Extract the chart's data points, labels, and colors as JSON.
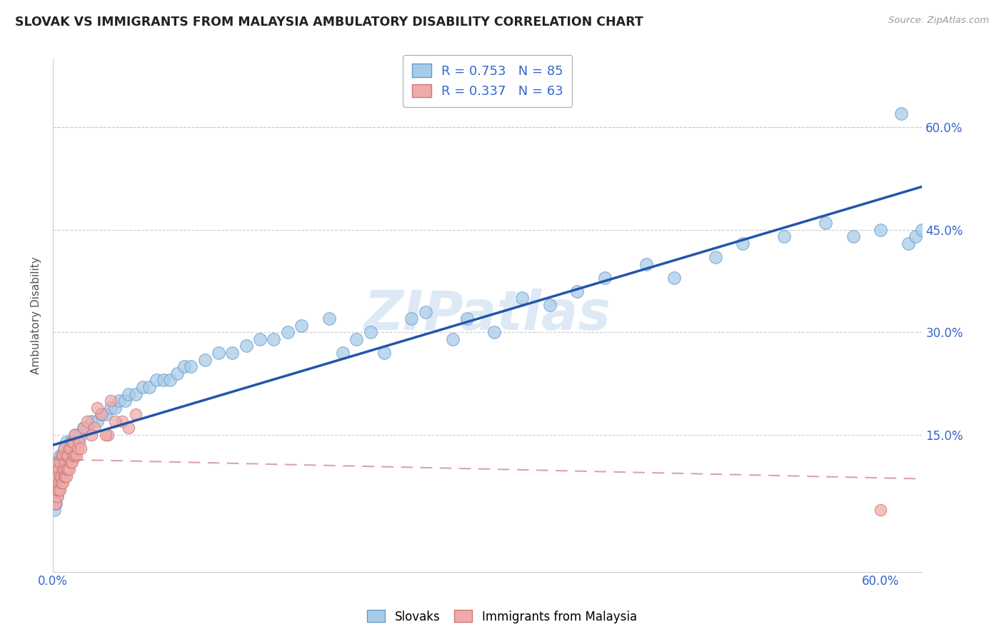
{
  "title": "SLOVAK VS IMMIGRANTS FROM MALAYSIA AMBULATORY DISABILITY CORRELATION CHART",
  "source": "Source: ZipAtlas.com",
  "ylabel": "Ambulatory Disability",
  "xlim": [
    0.0,
    0.63
  ],
  "ylim": [
    -0.05,
    0.7
  ],
  "xtick_vals": [
    0.0,
    0.6
  ],
  "xtick_labels": [
    "0.0%",
    "60.0%"
  ],
  "right_ytick_vals": [
    0.15,
    0.3,
    0.45,
    0.6
  ],
  "right_ytick_labels": [
    "15.0%",
    "30.0%",
    "45.0%",
    "60.0%"
  ],
  "slovak_color": "#A8CCE8",
  "slovak_edge_color": "#6699CC",
  "malaysia_color": "#F0AAAA",
  "malaysia_edge_color": "#CC7777",
  "trendline_slovak_color": "#2255AA",
  "trendline_malaysia_color": "#CC8888",
  "R_slovak": 0.753,
  "N_slovak": 85,
  "R_malaysia": 0.337,
  "N_malaysia": 63,
  "watermark": "ZIPatlas",
  "background_color": "#ffffff",
  "grid_color": "#cccccc",
  "slovak_scatter_x": [
    0.001,
    0.001,
    0.002,
    0.002,
    0.002,
    0.003,
    0.003,
    0.003,
    0.004,
    0.004,
    0.004,
    0.005,
    0.005,
    0.005,
    0.006,
    0.006,
    0.007,
    0.007,
    0.008,
    0.008,
    0.009,
    0.01,
    0.01,
    0.011,
    0.012,
    0.013,
    0.014,
    0.015,
    0.016,
    0.018,
    0.02,
    0.022,
    0.025,
    0.028,
    0.032,
    0.035,
    0.038,
    0.042,
    0.045,
    0.048,
    0.052,
    0.055,
    0.06,
    0.065,
    0.07,
    0.075,
    0.08,
    0.085,
    0.09,
    0.095,
    0.1,
    0.11,
    0.12,
    0.13,
    0.14,
    0.15,
    0.16,
    0.17,
    0.18,
    0.2,
    0.21,
    0.22,
    0.23,
    0.24,
    0.26,
    0.27,
    0.29,
    0.3,
    0.32,
    0.34,
    0.36,
    0.38,
    0.4,
    0.43,
    0.45,
    0.48,
    0.5,
    0.53,
    0.56,
    0.58,
    0.6,
    0.615,
    0.62,
    0.625,
    0.63
  ],
  "slovak_scatter_y": [
    0.04,
    0.06,
    0.05,
    0.07,
    0.08,
    0.06,
    0.09,
    0.1,
    0.07,
    0.08,
    0.11,
    0.08,
    0.1,
    0.12,
    0.09,
    0.11,
    0.1,
    0.12,
    0.11,
    0.13,
    0.12,
    0.11,
    0.14,
    0.12,
    0.13,
    0.14,
    0.13,
    0.14,
    0.15,
    0.14,
    0.15,
    0.16,
    0.16,
    0.17,
    0.17,
    0.18,
    0.18,
    0.19,
    0.19,
    0.2,
    0.2,
    0.21,
    0.21,
    0.22,
    0.22,
    0.23,
    0.23,
    0.23,
    0.24,
    0.25,
    0.25,
    0.26,
    0.27,
    0.27,
    0.28,
    0.29,
    0.29,
    0.3,
    0.31,
    0.32,
    0.27,
    0.29,
    0.3,
    0.27,
    0.32,
    0.33,
    0.29,
    0.32,
    0.3,
    0.35,
    0.34,
    0.36,
    0.38,
    0.4,
    0.38,
    0.41,
    0.43,
    0.44,
    0.46,
    0.44,
    0.45,
    0.62,
    0.43,
    0.44,
    0.45
  ],
  "malaysia_scatter_x": [
    0.001,
    0.001,
    0.001,
    0.001,
    0.002,
    0.002,
    0.002,
    0.002,
    0.002,
    0.003,
    0.003,
    0.003,
    0.003,
    0.004,
    0.004,
    0.004,
    0.005,
    0.005,
    0.005,
    0.006,
    0.006,
    0.006,
    0.007,
    0.007,
    0.007,
    0.008,
    0.008,
    0.008,
    0.009,
    0.009,
    0.01,
    0.01,
    0.01,
    0.011,
    0.011,
    0.012,
    0.012,
    0.013,
    0.013,
    0.014,
    0.014,
    0.015,
    0.015,
    0.016,
    0.016,
    0.017,
    0.018,
    0.019,
    0.02,
    0.022,
    0.025,
    0.03,
    0.035,
    0.04,
    0.05,
    0.028,
    0.032,
    0.045,
    0.055,
    0.06,
    0.6,
    0.038,
    0.042
  ],
  "malaysia_scatter_y": [
    0.05,
    0.06,
    0.07,
    0.08,
    0.05,
    0.07,
    0.08,
    0.09,
    0.1,
    0.06,
    0.07,
    0.09,
    0.11,
    0.07,
    0.08,
    0.1,
    0.07,
    0.09,
    0.11,
    0.08,
    0.09,
    0.12,
    0.08,
    0.1,
    0.12,
    0.09,
    0.1,
    0.13,
    0.09,
    0.11,
    0.09,
    0.1,
    0.12,
    0.1,
    0.12,
    0.1,
    0.13,
    0.11,
    0.13,
    0.11,
    0.14,
    0.12,
    0.14,
    0.12,
    0.15,
    0.12,
    0.13,
    0.14,
    0.13,
    0.16,
    0.17,
    0.16,
    0.18,
    0.15,
    0.17,
    0.15,
    0.19,
    0.17,
    0.16,
    0.18,
    0.04,
    0.15,
    0.2
  ]
}
